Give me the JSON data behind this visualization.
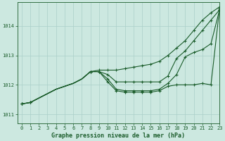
{
  "title": "Graphe pression niveau de la mer (hPa)",
  "bg_color": "#cce8e0",
  "grid_color": "#aacfc8",
  "line_color": "#1a5c2a",
  "xlim": [
    -0.5,
    23
  ],
  "ylim": [
    1010.7,
    1014.8
  ],
  "yticks": [
    1011,
    1012,
    1013,
    1014
  ],
  "xticks": [
    0,
    1,
    2,
    3,
    4,
    5,
    6,
    7,
    8,
    9,
    10,
    11,
    12,
    13,
    14,
    15,
    16,
    17,
    18,
    19,
    20,
    21,
    22,
    23
  ],
  "series": [
    [
      1011.35,
      1011.4,
      1011.55,
      1011.7,
      1011.85,
      1011.95,
      1012.05,
      1012.2,
      1012.45,
      1012.5,
      1012.5,
      1012.5,
      1012.55,
      1012.6,
      1012.65,
      1012.7,
      1012.8,
      1013.0,
      1013.25,
      1013.5,
      1013.85,
      1014.2,
      1014.45,
      1014.65
    ],
    [
      1011.35,
      1011.4,
      1011.55,
      1011.7,
      1011.85,
      1011.95,
      1012.05,
      1012.2,
      1012.45,
      1012.45,
      1012.35,
      1012.1,
      1012.1,
      1012.1,
      1012.1,
      1012.1,
      1012.1,
      1012.3,
      1012.9,
      1013.15,
      1013.5,
      1013.85,
      1014.2,
      1014.55
    ],
    [
      1011.35,
      1011.4,
      1011.55,
      1011.7,
      1011.85,
      1011.95,
      1012.05,
      1012.2,
      1012.45,
      1012.45,
      1012.2,
      1011.85,
      1011.8,
      1011.8,
      1011.8,
      1011.8,
      1011.85,
      1012.05,
      1012.35,
      1012.95,
      1013.1,
      1013.2,
      1013.4,
      1014.55
    ],
    [
      1011.35,
      1011.4,
      1011.55,
      1011.7,
      1011.85,
      1011.95,
      1012.05,
      1012.2,
      1012.45,
      1012.45,
      1012.1,
      1011.8,
      1011.75,
      1011.75,
      1011.75,
      1011.75,
      1011.8,
      1011.95,
      1012.0,
      1012.0,
      1012.0,
      1012.05,
      1012.0,
      1014.6
    ]
  ],
  "show_markers": [
    [
      0,
      1,
      8,
      9,
      10,
      11,
      12,
      13,
      14,
      15,
      16,
      17,
      18,
      19,
      20,
      21,
      22,
      23
    ],
    [
      0,
      1,
      8,
      9,
      10,
      11,
      12,
      13,
      14,
      15,
      16,
      17,
      18,
      19,
      20,
      21,
      22,
      23
    ],
    [
      0,
      1,
      8,
      9,
      10,
      11,
      12,
      13,
      14,
      15,
      16,
      17,
      18,
      19,
      20,
      21,
      22,
      23
    ],
    [
      0,
      1,
      8,
      9,
      10,
      11,
      12,
      13,
      14,
      15,
      16,
      17,
      18,
      19,
      20,
      21,
      22,
      23
    ]
  ],
  "title_fontsize": 6,
  "tick_fontsize": 5
}
